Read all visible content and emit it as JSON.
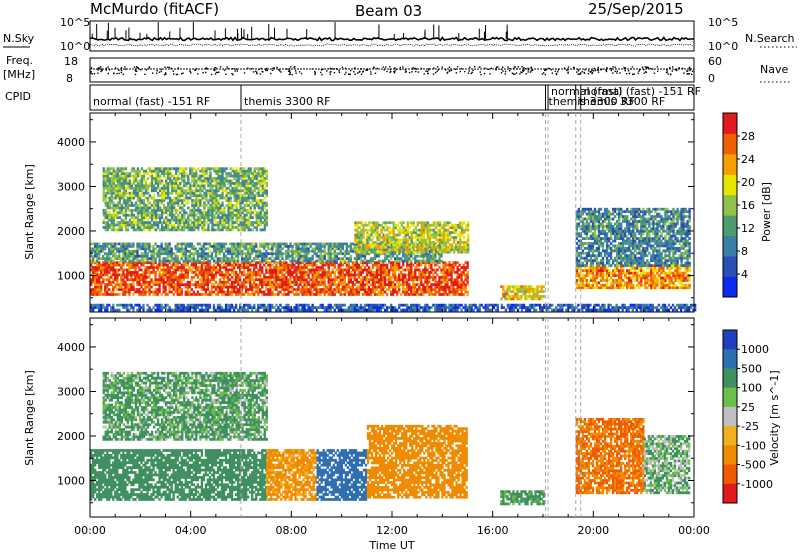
{
  "header": {
    "station": "McMurdo (fitACF)",
    "beam": "Beam 03",
    "date": "25/Sep/2015"
  },
  "panels": {
    "nsky": {
      "label": "N.Sky",
      "ticks": [
        "10^5",
        "10^0"
      ],
      "right_ticks": [
        "10^5",
        "10^0"
      ],
      "right_label": "N.Search"
    },
    "freq": {
      "label_top": "Freq.",
      "label_unit": "[MHz]",
      "ticks": [
        "18",
        "8"
      ],
      "right_ticks": [
        "60",
        "0"
      ],
      "right_label": "Nave"
    },
    "cpid": {
      "label": "CPID",
      "modes": [
        {
          "name": "normal (fast) -151 RF",
          "start": 0.0
        },
        {
          "name": "themis 3300 RF",
          "start": 6.0
        },
        {
          "name": "themis 3300 RF",
          "start": 18.1
        },
        {
          "name": "normal (fast)",
          "start": 18.2
        },
        {
          "name": "themis 3300 RF",
          "start": 19.3
        },
        {
          "name": "normal (fast) -151 RF",
          "start": 19.5
        }
      ]
    }
  },
  "chart_data": [
    {
      "type": "heatmap",
      "title": "Power",
      "xlabel": "Time UT",
      "ylabel": "Slant Range [km]",
      "xlim": [
        0,
        24
      ],
      "ylim": [
        180,
        4650
      ],
      "x_ticks": [
        "00:00",
        "04:00",
        "08:00",
        "12:00",
        "16:00",
        "20:00",
        "00:00"
      ],
      "y_ticks": [
        1000,
        2000,
        3000,
        4000
      ],
      "colorbar": {
        "label": "Power [dB]",
        "ticks": [
          4,
          8,
          12,
          16,
          20,
          24,
          28
        ],
        "range": [
          0,
          32
        ]
      },
      "regions": [
        {
          "t0": 0.0,
          "t1": 15.0,
          "r0": 550,
          "r1": 1300,
          "value": 28
        },
        {
          "t0": 0.0,
          "t1": 14.0,
          "r0": 1300,
          "r1": 1700,
          "value": 12
        },
        {
          "t0": 0.5,
          "t1": 7.0,
          "r0": 2000,
          "r1": 3400,
          "value": 14
        },
        {
          "t0": 10.5,
          "t1": 15.0,
          "r0": 1500,
          "r1": 2200,
          "value": 18
        },
        {
          "t0": 16.3,
          "t1": 18.0,
          "r0": 450,
          "r1": 750,
          "value": 20
        },
        {
          "t0": 19.3,
          "t1": 23.8,
          "r0": 700,
          "r1": 1200,
          "value": 24
        },
        {
          "t0": 19.3,
          "t1": 23.8,
          "r0": 1200,
          "r1": 2500,
          "value": 10
        },
        {
          "t0": 0.0,
          "t1": 24.0,
          "r0": 200,
          "r1": 320,
          "value": 6
        }
      ]
    },
    {
      "type": "heatmap",
      "title": "Velocity",
      "xlabel": "Time UT",
      "ylabel": "Slant Range [km]",
      "xlim": [
        0,
        24
      ],
      "ylim": [
        180,
        4650
      ],
      "x_ticks": [
        "00:00",
        "04:00",
        "08:00",
        "12:00",
        "16:00",
        "20:00",
        "00:00"
      ],
      "y_ticks": [
        1000,
        2000,
        3000,
        4000
      ],
      "colorbar": {
        "label": "Velocity [m s^-1]",
        "ticks": [
          1000,
          500,
          100,
          25,
          -25,
          -100,
          -500,
          -1000
        ]
      },
      "regions": [
        {
          "t0": 0.0,
          "t1": 7.0,
          "r0": 550,
          "r1": 1700,
          "value": 200
        },
        {
          "t0": 7.0,
          "t1": 9.0,
          "r0": 550,
          "r1": 1700,
          "value": -100
        },
        {
          "t0": 9.0,
          "t1": 11.0,
          "r0": 550,
          "r1": 1700,
          "value": 600
        },
        {
          "t0": 11.0,
          "t1": 15.0,
          "r0": 600,
          "r1": 2200,
          "value": -200
        },
        {
          "t0": 0.5,
          "t1": 7.0,
          "r0": 1900,
          "r1": 3400,
          "value": 80
        },
        {
          "t0": 16.3,
          "t1": 18.0,
          "r0": 450,
          "r1": 750,
          "value": 100
        },
        {
          "t0": 19.3,
          "t1": 22.0,
          "r0": 700,
          "r1": 2400,
          "value": -300
        },
        {
          "t0": 22.0,
          "t1": 23.8,
          "r0": 700,
          "r1": 2000,
          "value": 50
        }
      ]
    }
  ]
}
